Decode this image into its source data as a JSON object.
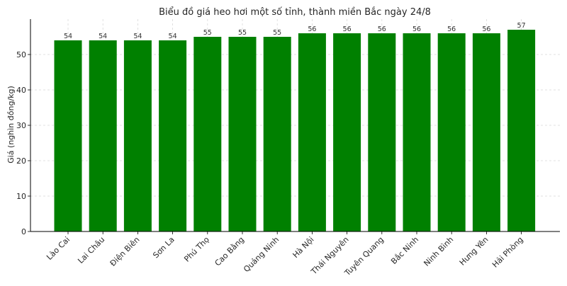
{
  "chart_data": {
    "type": "bar",
    "title": "Biểu đồ giá heo hơi một số tỉnh, thành miền Bắc ngày 24/8",
    "xlabel": "",
    "ylabel": "Giá (nghìn đồng/kg)",
    "categories": [
      "Lào Cai",
      "Lai Châu",
      "Điện Biên",
      "Sơn La",
      "Phú Thọ",
      "Cao Bằng",
      "Quảng Ninh",
      "Hà Nội",
      "Thái Nguyên",
      "Tuyên Quang",
      "Bắc Ninh",
      "Ninh Bình",
      "Hưng Yên",
      "Hải Phòng"
    ],
    "values": [
      54,
      54,
      54,
      54,
      55,
      55,
      55,
      56,
      56,
      56,
      56,
      56,
      56,
      57
    ],
    "data_labels": [
      "54",
      "54",
      "54",
      "54",
      "55",
      "55",
      "55",
      "56",
      "56",
      "56",
      "56",
      "56",
      "56",
      "57"
    ],
    "ylim": [
      0,
      60
    ],
    "yticks": [
      0,
      10,
      20,
      30,
      40,
      50
    ],
    "ytick_labels": [
      "0",
      "10",
      "20",
      "30",
      "40",
      "50"
    ],
    "grid": true,
    "legend": "none",
    "colors": {
      "bar": "#008000",
      "grid": "#d9d9d9",
      "axis": "#000000"
    }
  }
}
